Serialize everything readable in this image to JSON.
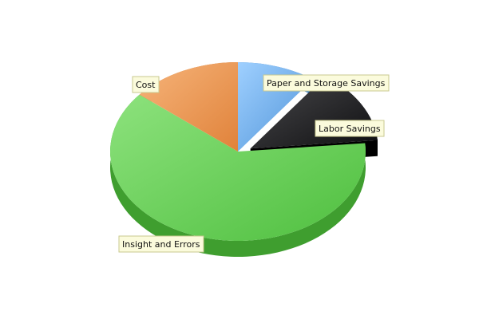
{
  "chart_data": {
    "type": "pie",
    "title": "",
    "slices": [
      {
        "label": "Paper and Storage Savings",
        "value": 10.0,
        "color": "#6aa9e6"
      },
      {
        "label": "Labor Savings",
        "value": 13.5,
        "color": "#1d1d1f"
      },
      {
        "label": "Insight and Errors",
        "value": 62.5,
        "color": "#6fd05f"
      },
      {
        "label": "Cost",
        "value": 14.0,
        "color": "#ee9a52"
      }
    ],
    "exploded": [
      "Labor Savings"
    ],
    "style": "3d",
    "legend": "none"
  }
}
